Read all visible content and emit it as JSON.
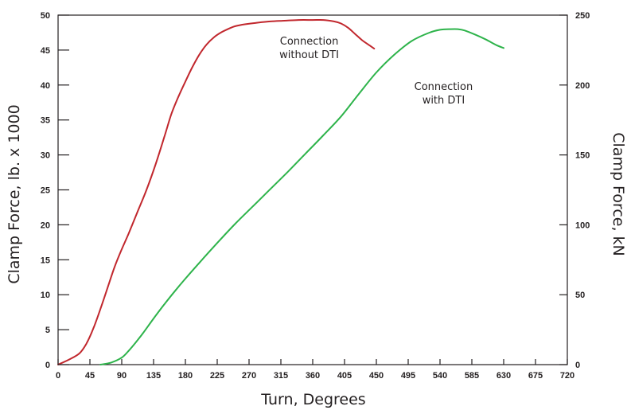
{
  "chart_data": {
    "type": "line",
    "xlabel": "Turn, Degrees",
    "ylabel_left": "Clamp Force, lb. x 1000",
    "ylabel_right": "Clamp Force, kN",
    "xlim": [
      0,
      720
    ],
    "ylim_left": [
      0,
      50
    ],
    "ylim_right": [
      0,
      250
    ],
    "x_ticks": [
      "0",
      "45",
      "90",
      "135",
      "180",
      "225",
      "270",
      "315",
      "360",
      "405",
      "450",
      "495",
      "540",
      "585",
      "630",
      "675",
      "720"
    ],
    "y_left_ticks": [
      "0",
      "5",
      "10",
      "15",
      "20",
      "25",
      "30",
      "35",
      "40",
      "45",
      "50"
    ],
    "y_right_ticks": [
      "0",
      "50",
      "100",
      "150",
      "200",
      "250"
    ],
    "grid": false,
    "annotations": [
      {
        "lines": [
          "Connection",
          "without DTI"
        ],
        "x": 355,
        "y": 45.8
      },
      {
        "lines": [
          "Connection",
          "with DTI"
        ],
        "x": 545,
        "y": 39.3
      }
    ],
    "series": [
      {
        "color": "#c1272d",
        "x": [
          0,
          15,
          30,
          40,
          50,
          60,
          70,
          80,
          90,
          100,
          112,
          125,
          138,
          150,
          160,
          170,
          180,
          190,
          200,
          210,
          220,
          230,
          240,
          250,
          265,
          280,
          300,
          320,
          340,
          360,
          375,
          390,
          400,
          410,
          420,
          430,
          440,
          447
        ],
        "y": [
          0,
          0.7,
          1.6,
          3.0,
          5.2,
          8.0,
          11.0,
          14.0,
          16.5,
          18.8,
          21.8,
          25.0,
          28.7,
          32.5,
          35.8,
          38.3,
          40.5,
          42.6,
          44.4,
          45.8,
          46.8,
          47.5,
          48.0,
          48.4,
          48.7,
          48.9,
          49.1,
          49.2,
          49.3,
          49.3,
          49.3,
          49.1,
          48.8,
          48.2,
          47.3,
          46.4,
          45.7,
          45.2
        ]
      },
      {
        "color": "#2db34a",
        "x": [
          60,
          75,
          90,
          100,
          110,
          120,
          135,
          150,
          165,
          180,
          200,
          225,
          250,
          275,
          300,
          325,
          350,
          375,
          400,
          425,
          450,
          475,
          500,
          525,
          540,
          555,
          565,
          575,
          590,
          605,
          620,
          630
        ],
        "y": [
          0,
          0.3,
          1.0,
          2.0,
          3.2,
          4.5,
          6.6,
          8.6,
          10.5,
          12.3,
          14.6,
          17.4,
          20.1,
          22.6,
          25.1,
          27.6,
          30.2,
          32.8,
          35.5,
          38.7,
          41.8,
          44.3,
          46.3,
          47.5,
          47.9,
          48.0,
          48.0,
          47.8,
          47.2,
          46.5,
          45.7,
          45.3
        ]
      }
    ]
  }
}
